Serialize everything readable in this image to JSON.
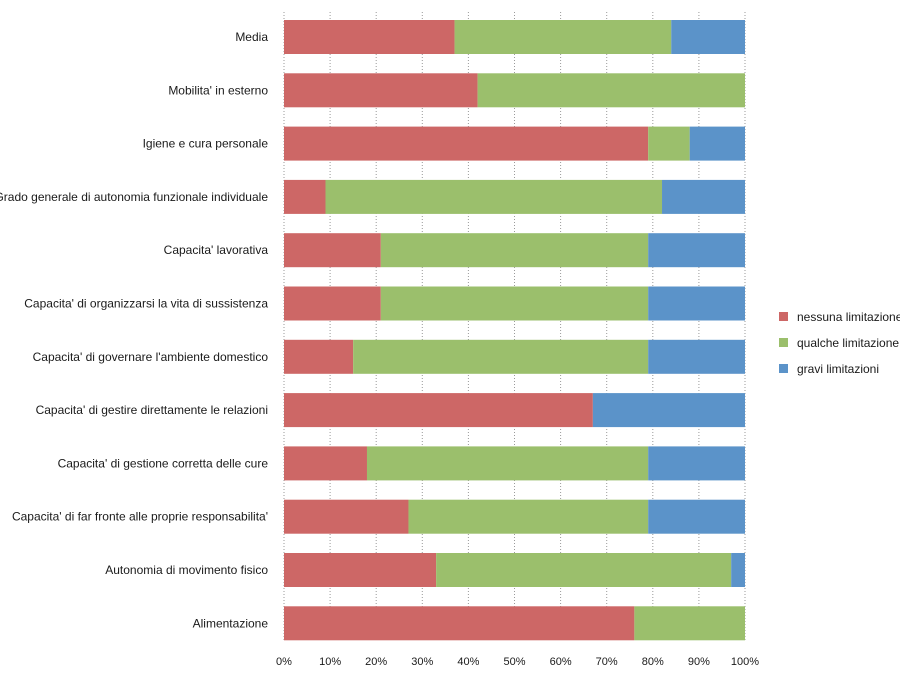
{
  "chart_data": {
    "type": "bar",
    "orientation": "horizontal",
    "stacked": "percent",
    "categories": [
      "Media",
      "Mobilita' in esterno",
      "Igiene e cura personale",
      "Grado generale di autonomia funzionale individuale",
      "Capacita' lavorativa",
      "Capacita' di organizzarsi la vita di sussistenza",
      "Capacita' di governare l'ambiente domestico",
      "Capacita' di gestire direttamente le relazioni",
      "Capacita' di gestione corretta delle cure",
      "Capacita' di far fronte alle proprie responsabilita'",
      "Autonomia di movimento fisico",
      "Alimentazione"
    ],
    "series": [
      {
        "name": "nessuna limitazione",
        "color": "#cd6766",
        "values": [
          37,
          42,
          79,
          9,
          21,
          21,
          15,
          67,
          18,
          27,
          33,
          76
        ]
      },
      {
        "name": "qualche limitazione",
        "color": "#9bbf6c",
        "values": [
          47,
          58,
          9,
          73,
          58,
          58,
          64,
          0,
          61,
          52,
          64,
          24
        ]
      },
      {
        "name": "gravi limitazioni",
        "color": "#5b93c9",
        "values": [
          16,
          0,
          12,
          18,
          21,
          21,
          21,
          33,
          21,
          21,
          3,
          0
        ]
      }
    ],
    "x_ticks": [
      "0%",
      "10%",
      "20%",
      "30%",
      "40%",
      "50%",
      "60%",
      "70%",
      "80%",
      "90%",
      "100%"
    ],
    "xlim": [
      0,
      100
    ],
    "grid": "vertical-dotted",
    "legend_position": "right",
    "title": "",
    "xlabel": "",
    "ylabel": ""
  }
}
